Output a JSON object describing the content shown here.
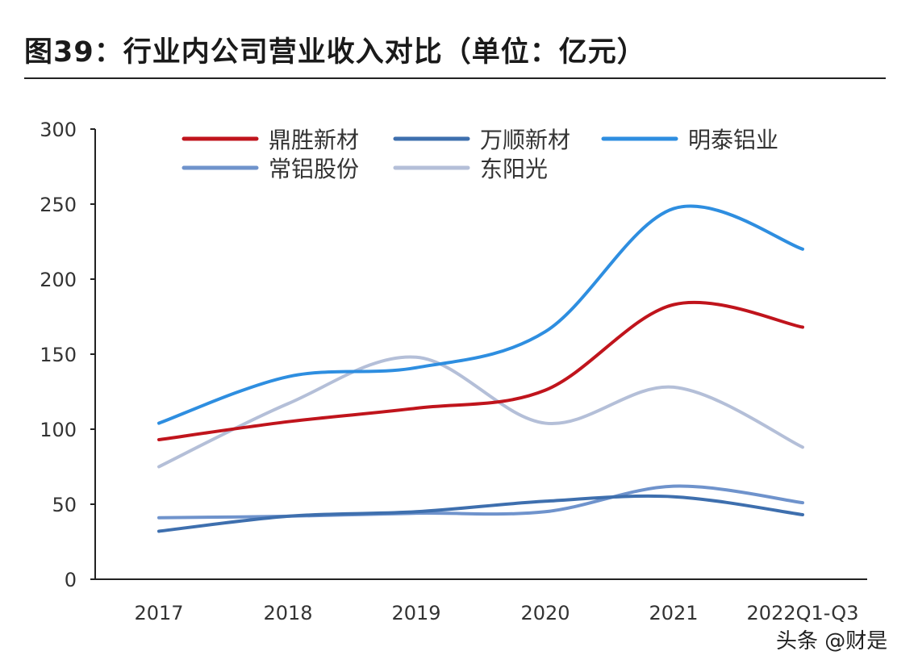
{
  "title": "图39：行业内公司营业收入对比（单位：亿元）",
  "watermark": "头条 @财是",
  "chart_data": {
    "type": "line",
    "title": "图39：行业内公司营业收入对比（单位：亿元）",
    "xlabel": "",
    "ylabel": "",
    "categories": [
      "2017",
      "2018",
      "2019",
      "2020",
      "2021",
      "2022Q1-Q3"
    ],
    "ylim": [
      0,
      300
    ],
    "yticks": [
      0,
      50,
      100,
      150,
      200,
      250,
      300
    ],
    "grid": false,
    "legend_position": "top",
    "series": [
      {
        "name": "鼎胜新材",
        "color": "#c0141c",
        "values": [
          93,
          105,
          114,
          126,
          183,
          168
        ]
      },
      {
        "name": "万顺新材",
        "color": "#3e6fae",
        "values": [
          32,
          42,
          45,
          52,
          55,
          43
        ]
      },
      {
        "name": "明泰铝业",
        "color": "#2e8ee0",
        "values": [
          104,
          135,
          141,
          165,
          247,
          220
        ]
      },
      {
        "name": "常铝股份",
        "color": "#6f93cc",
        "values": [
          41,
          42,
          44,
          45,
          62,
          51
        ]
      },
      {
        "name": "东阳光",
        "color": "#b4bfd8",
        "values": [
          75,
          117,
          148,
          104,
          128,
          88
        ]
      }
    ]
  }
}
